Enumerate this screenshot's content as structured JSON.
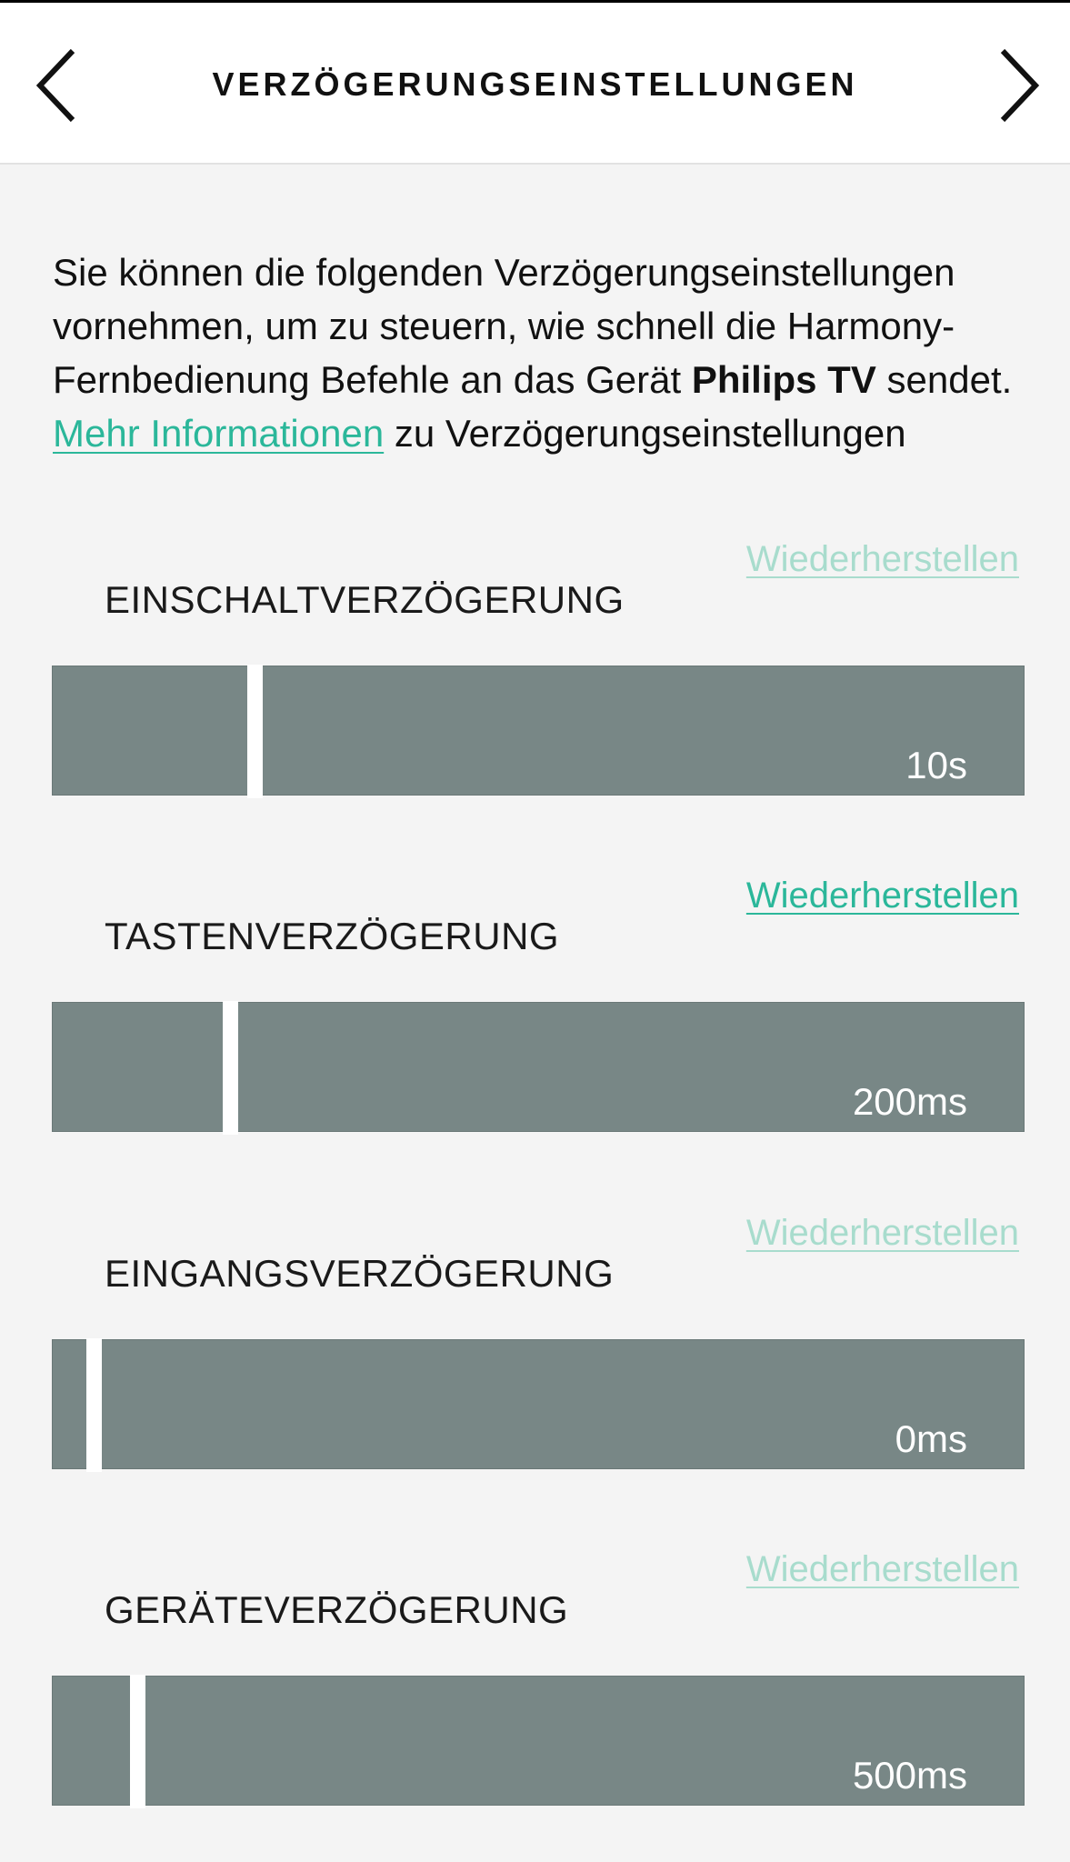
{
  "header": {
    "title": "VERZÖGERUNGSEINSTELLUNGEN",
    "back_icon": "chevron-left-icon",
    "next_icon": "chevron-right-icon"
  },
  "intro": {
    "text_part1": "Sie können die folgenden Verzögerungseinstellungen vornehmen, um zu steuern, wie schnell die Harmony-Fernbedienung Befehle an das Gerät ",
    "device_name": "Philips TV",
    "text_part2": " sendet.",
    "more_link": "Mehr Informationen",
    "text_part3": " zu Verzögerungseinstellungen"
  },
  "colors": {
    "accent": "#2bb79a",
    "accent_disabled": "#a8dccd",
    "slider_track": "#788786",
    "background": "#f4f4f4"
  },
  "settings": [
    {
      "label": "EINSCHALTVERZÖGERUNG",
      "restore_label": "Wiederherstellen",
      "restore_enabled": false,
      "value": "10s",
      "slider_position": 0.2
    },
    {
      "label": "TASTENVERZÖGERUNG",
      "restore_label": "Wiederherstellen",
      "restore_enabled": true,
      "value": "200ms",
      "slider_position": 0.175
    },
    {
      "label": "EINGANGSVERZÖGERUNG",
      "restore_label": "Wiederherstellen",
      "restore_enabled": false,
      "value": "0ms",
      "slider_position": 0.035
    },
    {
      "label": "GERÄTEVERZÖGERUNG",
      "restore_label": "Wiederherstellen",
      "restore_enabled": false,
      "value": "500ms",
      "slider_position": 0.08
    }
  ]
}
